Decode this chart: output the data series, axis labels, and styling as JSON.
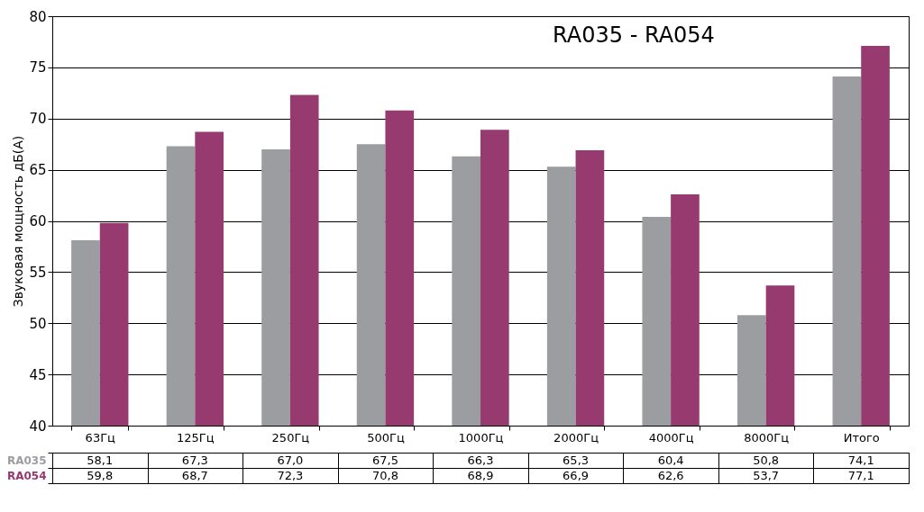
{
  "chart_data": {
    "type": "bar",
    "title": "RA035 - RA054",
    "ylabel": "Звуковая мощность дБ(А)",
    "categories": [
      "63Гц",
      "125Гц",
      "250Гц",
      "500Гц",
      "1000Гц",
      "2000Гц",
      "4000Гц",
      "8000Гц",
      "Итого"
    ],
    "series": [
      {
        "name": "RA035",
        "color": "#9b9da1",
        "values": [
          58.1,
          67.3,
          67.0,
          67.5,
          66.3,
          65.3,
          60.4,
          50.8,
          74.1
        ],
        "value_labels": [
          "58,1",
          "67,3",
          "67,0",
          "67,5",
          "66,3",
          "65,3",
          "60,4",
          "50,8",
          "74,1"
        ]
      },
      {
        "name": "RA054",
        "color": "#963a70",
        "values": [
          59.8,
          68.7,
          72.3,
          70.8,
          68.9,
          66.9,
          62.6,
          53.7,
          77.1
        ],
        "value_labels": [
          "59,8",
          "68,7",
          "72,3",
          "70,8",
          "68,9",
          "66,9",
          "62,6",
          "53,7",
          "77,1"
        ]
      }
    ],
    "ylim": [
      40,
      80
    ],
    "yticks": [
      40,
      45,
      50,
      55,
      60,
      65,
      70,
      75,
      80
    ],
    "grid": "y",
    "legend": false
  }
}
